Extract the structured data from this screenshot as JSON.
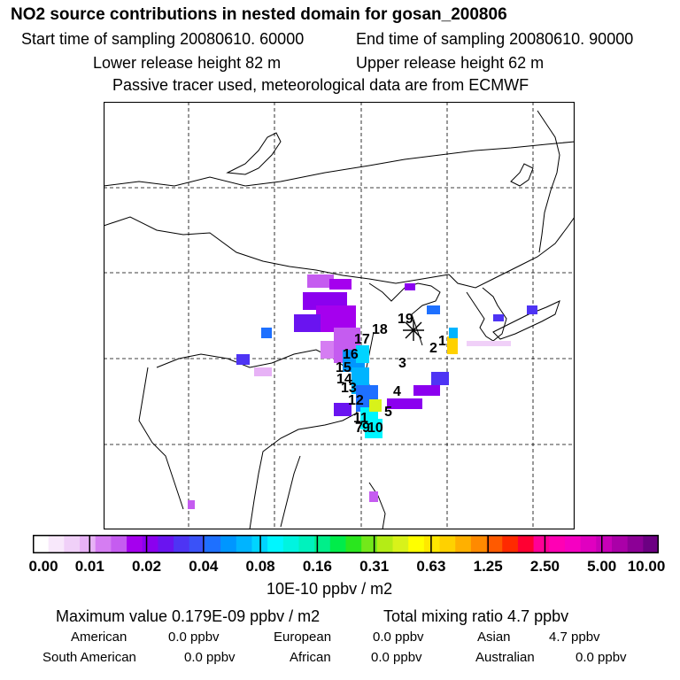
{
  "title": "NO2 source contributions in nested domain for gosan_200806",
  "sampling": {
    "start": "Start time of sampling 20080610. 60000",
    "end": "End time of sampling 20080610. 90000"
  },
  "release": {
    "lower": "Lower release height   82 m",
    "upper": "Upper release height   62 m"
  },
  "tracer_note": "Passive tracer used, meteorological data are from ECMWF",
  "map": {
    "receptor_symbol": "asterisk",
    "trajectory_labels": [
      "1",
      "2",
      "3",
      "4",
      "5",
      "7",
      "9",
      "10",
      "11",
      "12",
      "13",
      "14",
      "15",
      "16",
      "17",
      "18",
      "19"
    ]
  },
  "colorbar": {
    "colors": [
      "#ffffff",
      "#f8e8fb",
      "#f0d0f8",
      "#e7b2f6",
      "#d57df2",
      "#c55cf0",
      "#a500ee",
      "#8b00ef",
      "#6a14f0",
      "#4e34f4",
      "#3a52f8",
      "#1e70ff",
      "#0096ff",
      "#00b4ff",
      "#00d4ff",
      "#00f6ff",
      "#00f4e0",
      "#00f2bd",
      "#00ef8a",
      "#00ec4a",
      "#2ae61e",
      "#73e81a",
      "#b4ec16",
      "#d8f21a",
      "#ffff00",
      "#ffe800",
      "#ffd100",
      "#ffb000",
      "#ff8a00",
      "#ff5a00",
      "#ff2a00",
      "#ff0032",
      "#ff0096",
      "#ff00b4",
      "#f500c2",
      "#e000c0",
      "#c800b8",
      "#aa00a8",
      "#8c0096",
      "#6c0082"
    ],
    "tick_labels": [
      "0.00",
      "0.01",
      "0.02",
      "0.04",
      "0.08",
      "0.16",
      "0.31",
      "0.63",
      "1.25",
      "2.50",
      "5.00",
      "10.00"
    ],
    "unit": "10E-10 ppbv / m2"
  },
  "summary": {
    "max_value": "Maximum value  0.179E-09 ppbv / m2",
    "total_mixing": "Total mixing ratio        4.7 ppbv",
    "american_label": "American",
    "american_value": "0.0 ppbv",
    "european_label": "European",
    "european_value": "0.0 ppbv",
    "asian_label": "Asian",
    "asian_value": "4.7 ppbv",
    "south_american_label": "South American",
    "south_american_value": "0.0 ppbv",
    "african_label": "African",
    "african_value": "0.0 ppbv",
    "australian_label": "Australian",
    "australian_value": "0.0 ppbv"
  }
}
